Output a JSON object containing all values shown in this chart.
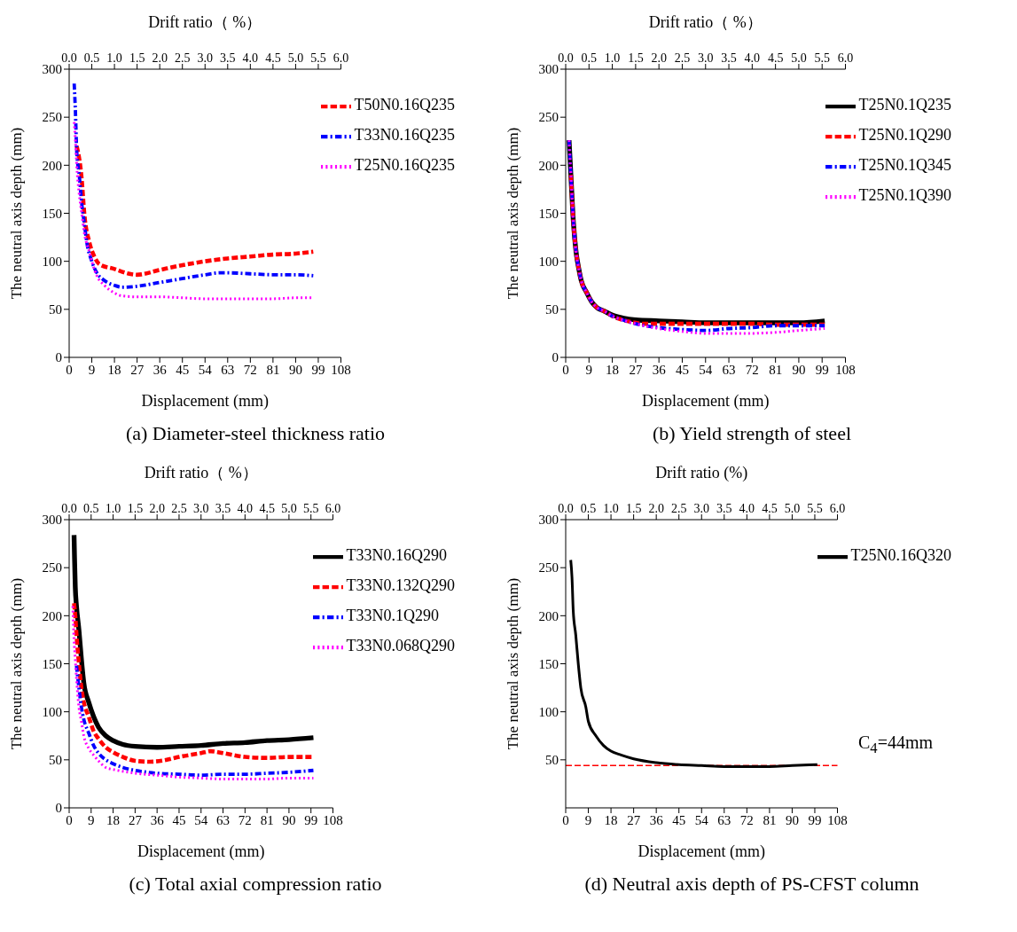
{
  "chart_data": [
    {
      "type": "line",
      "title": "(a) Diameter-steel thickness ratio",
      "xlabel": "Displacement (mm)",
      "ylabel": "The neutral axis depth (mm)",
      "x2label": "Drift ratio（ %）",
      "xlim": [
        0,
        108
      ],
      "xticks": [
        0,
        9,
        18,
        27,
        36,
        45,
        54,
        63,
        72,
        81,
        90,
        99,
        108
      ],
      "ylim": [
        0,
        300
      ],
      "yticks": [
        0,
        50,
        100,
        150,
        200,
        250,
        300
      ],
      "x2lim": [
        0,
        6
      ],
      "x2ticks": [
        {
          "value": 0,
          "label": "0.0"
        },
        0.5,
        {
          "value": 1,
          "label": "1.0"
        },
        1.5,
        {
          "value": 2,
          "label": "2.0"
        },
        2.5,
        {
          "value": 3,
          "label": "3.0"
        },
        3.5,
        {
          "value": 4,
          "label": "4.0"
        },
        4.5,
        {
          "value": 5,
          "label": "5.0"
        },
        5.5,
        {
          "value": 6,
          "label": "6.0"
        }
      ],
      "legend": "top right",
      "grid": false,
      "marker": "none",
      "series": [
        {
          "name": "T50N0.16Q235",
          "color": "#ff0000",
          "line_style": "dashed",
          "x": [
            3,
            5,
            6,
            8,
            10,
            12,
            18,
            24,
            27,
            36,
            45,
            54,
            63,
            72,
            81,
            90,
            97
          ],
          "values": [
            220,
            185,
            150,
            120,
            105,
            97,
            92,
            87,
            86,
            91,
            96,
            100,
            103,
            105,
            107,
            108,
            110
          ]
        },
        {
          "name": "T33N0.16Q235",
          "color": "#0000ff",
          "line_style": "dashdot",
          "x": [
            2,
            2.5,
            3,
            4,
            5,
            6,
            7,
            9,
            11,
            14,
            18,
            21,
            27,
            36,
            45,
            54,
            60,
            63,
            72,
            81,
            90,
            97
          ],
          "values": [
            285,
            255,
            215,
            190,
            160,
            140,
            120,
            100,
            88,
            80,
            75,
            73,
            74,
            78,
            82,
            86,
            88,
            88,
            87,
            86,
            86,
            85
          ]
        },
        {
          "name": "T25N0.16Q235",
          "color": "#ff00ff",
          "line_style": "dotted",
          "x": [
            2,
            2.5,
            3,
            4,
            5,
            6,
            8,
            9,
            11,
            14,
            18,
            21,
            27,
            36,
            45,
            54,
            63,
            72,
            81,
            90,
            97
          ],
          "values": [
            245,
            225,
            200,
            170,
            150,
            130,
            110,
            100,
            85,
            75,
            67,
            64,
            63,
            63,
            62,
            61,
            61,
            61,
            61,
            62,
            62
          ]
        }
      ]
    },
    {
      "type": "line",
      "title": "(b) Yield strength of steel",
      "xlabel": "Displacement (mm)",
      "ylabel": "The neutral axis depth (mm)",
      "x2label": "Drift ratio（ %）",
      "xlim": [
        0,
        108
      ],
      "xticks": [
        0,
        9,
        18,
        27,
        36,
        45,
        54,
        63,
        72,
        81,
        90,
        99,
        108
      ],
      "ylim": [
        0,
        300
      ],
      "yticks": [
        0,
        50,
        100,
        150,
        200,
        250,
        300
      ],
      "x2lim": [
        0,
        6
      ],
      "x2ticks": [
        {
          "value": 0,
          "label": "0.0"
        },
        0.5,
        {
          "value": 1,
          "label": "1.0"
        },
        1.5,
        {
          "value": 2,
          "label": "2.0"
        },
        2.5,
        {
          "value": 3,
          "label": "3.0"
        },
        3.5,
        {
          "value": 4,
          "label": "4.0"
        },
        4.5,
        {
          "value": 5,
          "label": "5.0"
        },
        5.5,
        {
          "value": 6,
          "label": "6.0"
        }
      ],
      "legend": "top right",
      "grid": false,
      "marker": "none",
      "series": [
        {
          "name": "T25N0.1Q235",
          "color": "#000000",
          "line_style": "solid",
          "x": [
            1.3,
            2,
            3,
            4,
            5,
            6,
            8,
            10,
            12,
            15,
            18,
            22,
            27,
            36,
            45,
            54,
            63,
            72,
            81,
            90,
            100
          ],
          "values": [
            226,
            190,
            140,
            110,
            93,
            80,
            68,
            58,
            52,
            48,
            44,
            41,
            39,
            38,
            37,
            36,
            36,
            36,
            36,
            36,
            38
          ]
        },
        {
          "name": "T25N0.1Q290",
          "color": "#ff0000",
          "line_style": "dashed",
          "x": [
            2,
            3,
            4,
            5,
            6,
            8,
            10,
            12,
            15,
            18,
            22,
            27,
            30,
            36,
            45,
            54,
            63,
            72,
            81,
            90,
            100
          ],
          "values": [
            190,
            140,
            110,
            93,
            80,
            68,
            58,
            52,
            48,
            43,
            39,
            36,
            35,
            35,
            35,
            35,
            35,
            35,
            34,
            34,
            34
          ]
        },
        {
          "name": "T25N0.1Q345",
          "color": "#0000ff",
          "line_style": "dashdot",
          "x": [
            1.3,
            2,
            3,
            4,
            5,
            6,
            8,
            10,
            12,
            15,
            18,
            22,
            27,
            36,
            45,
            54,
            63,
            72,
            81,
            90,
            100
          ],
          "values": [
            226,
            190,
            140,
            110,
            93,
            80,
            68,
            58,
            52,
            48,
            43,
            39,
            35,
            31,
            29,
            28,
            30,
            31,
            33,
            33,
            33
          ]
        },
        {
          "name": "T25N0.1Q390",
          "color": "#ff00ff",
          "line_style": "dotted",
          "x": [
            1.3,
            2,
            3,
            4,
            5,
            6,
            8,
            10,
            12,
            15,
            18,
            22,
            27,
            36,
            45,
            54,
            63,
            72,
            81,
            90,
            100
          ],
          "values": [
            226,
            190,
            140,
            110,
            93,
            80,
            68,
            58,
            52,
            48,
            43,
            39,
            35,
            30,
            27,
            25,
            25,
            25,
            26,
            28,
            30
          ]
        }
      ]
    },
    {
      "type": "line",
      "title": "(c) Total axial compression ratio",
      "xlabel": "Displacement (mm)",
      "ylabel": "The neutral axis depth (mm)",
      "x2label": "Drift ratio（ %）",
      "xlim": [
        0,
        108
      ],
      "xticks": [
        0,
        9,
        18,
        27,
        36,
        45,
        54,
        63,
        72,
        81,
        90,
        99,
        108
      ],
      "ylim": [
        0,
        300
      ],
      "yticks": [
        0,
        50,
        100,
        150,
        200,
        250,
        300
      ],
      "x2lim": [
        0,
        6
      ],
      "x2ticks": [
        {
          "value": 0,
          "label": "0.0"
        },
        0.5,
        {
          "value": 1,
          "label": "1.0"
        },
        1.5,
        {
          "value": 2,
          "label": "2.0"
        },
        2.5,
        {
          "value": 3,
          "label": "3.0"
        },
        3.5,
        {
          "value": 4,
          "label": "4.0"
        },
        4.5,
        {
          "value": 5,
          "label": "5.0"
        },
        5.5,
        {
          "value": 6,
          "label": "6.0"
        }
      ],
      "legend": "top right",
      "grid": false,
      "marker": "none",
      "series": [
        {
          "name": "T33N0.16Q290",
          "color": "#000000",
          "line_style": "solid",
          "x": [
            2,
            2.2,
            2.5,
            3,
            4,
            5,
            6,
            8,
            10,
            12,
            15,
            18,
            22,
            27,
            36,
            45,
            54,
            63,
            72,
            81,
            90,
            100
          ],
          "values": [
            284,
            260,
            230,
            210,
            185,
            155,
            130,
            110,
            95,
            84,
            75,
            70,
            66,
            64,
            63,
            64,
            65,
            67,
            68,
            70,
            71,
            73
          ]
        },
        {
          "name": "T33N0.132Q290",
          "color": "#ff0000",
          "line_style": "dashed",
          "x": [
            2,
            2.5,
            3,
            4,
            5,
            6,
            8,
            10,
            12,
            15,
            18,
            22,
            27,
            33,
            40,
            45,
            54,
            58,
            63,
            72,
            81,
            90,
            100
          ],
          "values": [
            213,
            200,
            180,
            150,
            125,
            110,
            95,
            80,
            72,
            63,
            58,
            53,
            49,
            48,
            50,
            53,
            57,
            59,
            57,
            53,
            52,
            53,
            53
          ]
        },
        {
          "name": "T33N0.1Q290",
          "color": "#0000ff",
          "line_style": "dashdot",
          "x": [
            3,
            4,
            5,
            6,
            8,
            10,
            12,
            15,
            18,
            22,
            27,
            36,
            45,
            54,
            63,
            72,
            81,
            90,
            100
          ],
          "values": [
            148,
            125,
            105,
            92,
            78,
            65,
            57,
            50,
            46,
            42,
            39,
            36,
            35,
            34,
            35,
            35,
            36,
            37,
            39
          ]
        },
        {
          "name": "T33N0.068Q290",
          "color": "#ff00ff",
          "line_style": "dotted",
          "x": [
            1.5,
            2,
            2.5,
            3,
            4,
            5,
            6,
            8,
            10,
            12,
            15,
            18,
            22,
            27,
            36,
            45,
            54,
            63,
            72,
            81,
            90,
            100
          ],
          "values": [
            210,
            175,
            155,
            135,
            105,
            90,
            75,
            62,
            55,
            49,
            42,
            40,
            38,
            36,
            34,
            32,
            31,
            30,
            30,
            30,
            31,
            31
          ]
        }
      ]
    },
    {
      "type": "line",
      "title": "(d) Neutral axis depth of PS-CFST column",
      "xlabel": "Displacement  (mm)",
      "ylabel": "The  neutral axis depth (mm)",
      "x2label": "Drift ratio (%)",
      "xlim": [
        0,
        108
      ],
      "xticks": [
        0,
        9,
        18,
        27,
        36,
        45,
        54,
        63,
        72,
        81,
        90,
        99,
        108
      ],
      "ylim": [
        0,
        300
      ],
      "yticks": [
        50,
        100,
        150,
        200,
        250,
        300
      ],
      "x2lim": [
        0,
        6
      ],
      "x2ticks": [
        {
          "value": 0,
          "label": "0.0"
        },
        0.5,
        {
          "value": 1,
          "label": "1.0"
        },
        1.5,
        {
          "value": 2,
          "label": "2.0"
        },
        2.5,
        {
          "value": 3,
          "label": "3.0"
        },
        3.5,
        {
          "value": 4,
          "label": "4.0"
        },
        4.5,
        {
          "value": 5,
          "label": "5.0"
        },
        5.5,
        {
          "value": 6,
          "label": "6.0"
        }
      ],
      "legend": "top right",
      "grid": false,
      "marker": "none",
      "annotations": [
        "C$_{4}$=44mm"
      ],
      "ref_lines": [
        {
          "axis": "y",
          "value": 44,
          "color": "#ff0000",
          "line_style": "dashed"
        }
      ],
      "series": [
        {
          "name": "T25N0.16Q320",
          "color": "#000000",
          "line_style": "solid",
          "x": [
            2,
            2.5,
            3,
            4,
            5,
            6,
            8,
            9,
            12,
            15,
            18,
            22,
            27,
            36,
            45,
            54,
            63,
            72,
            81,
            90,
            100
          ],
          "values": [
            258,
            240,
            205,
            180,
            150,
            125,
            105,
            90,
            75,
            65,
            59,
            55,
            51,
            47,
            45,
            44,
            43,
            43,
            43,
            44,
            45
          ]
        }
      ]
    }
  ]
}
